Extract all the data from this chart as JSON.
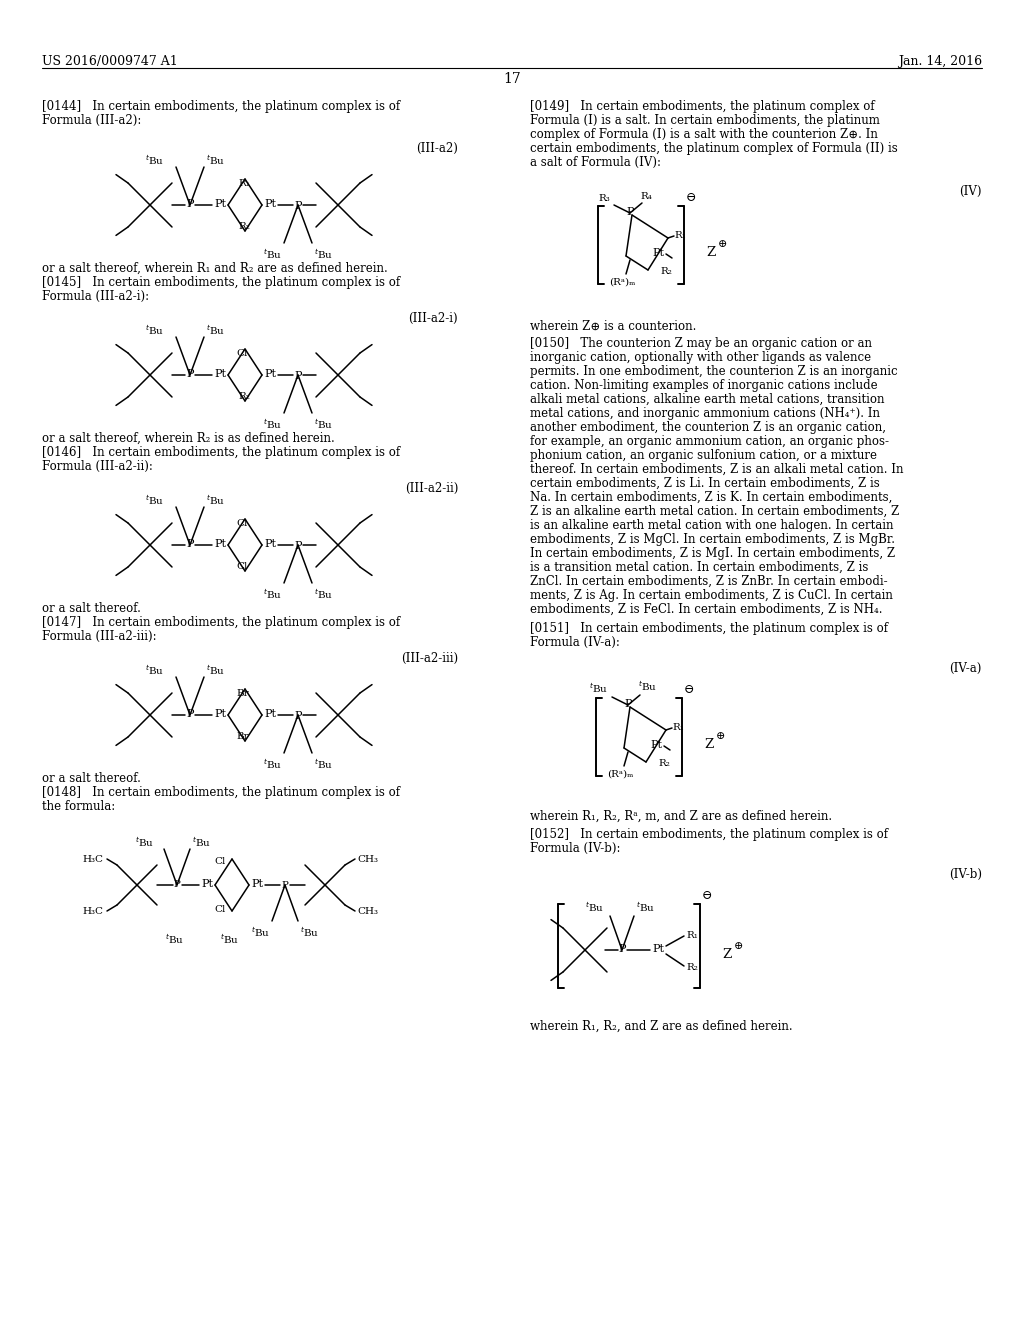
{
  "page_header_left": "US 2016/0009747 A1",
  "page_header_right": "Jan. 14, 2016",
  "page_number": "17",
  "background_color": "#ffffff"
}
